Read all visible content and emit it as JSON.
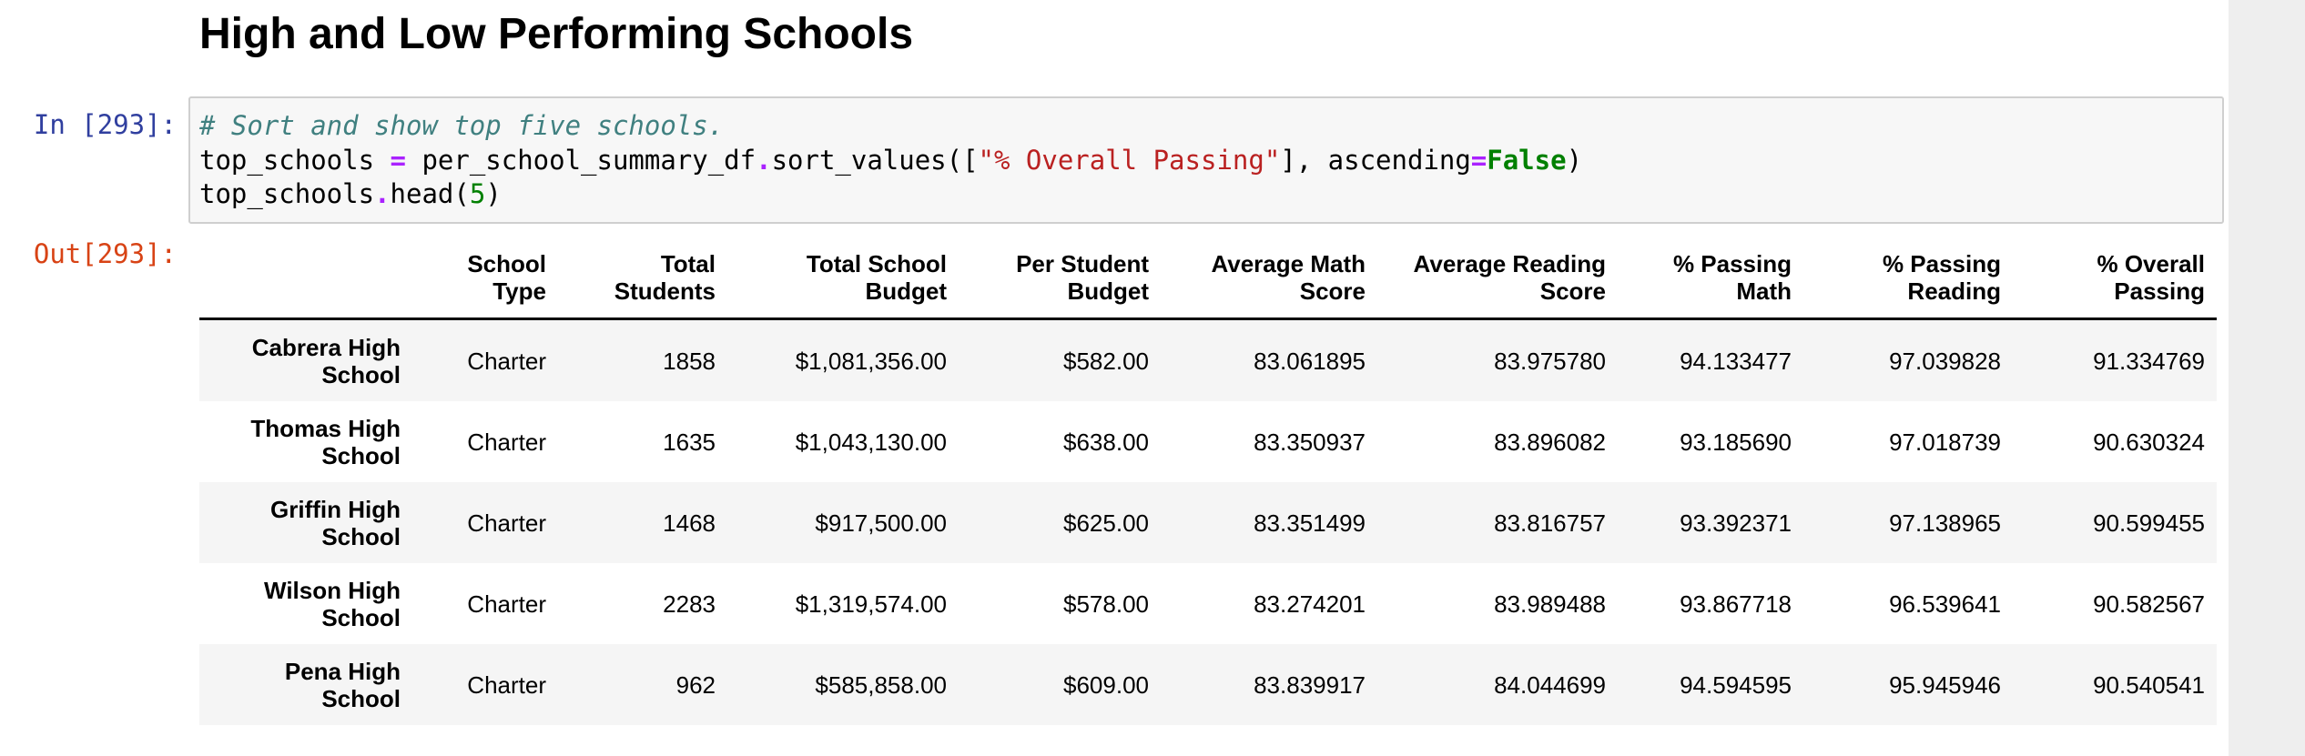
{
  "heading": "High and Low Performing Schools",
  "input_cell": {
    "prompt": "In [293]:",
    "code_lines": [
      [
        {
          "cls": "c-comment",
          "text": "# Sort and show top five schools."
        }
      ],
      [
        {
          "cls": "",
          "text": "top_schools "
        },
        {
          "cls": "c-op",
          "text": "="
        },
        {
          "cls": "",
          "text": " per_school_summary_df"
        },
        {
          "cls": "c-op",
          "text": "."
        },
        {
          "cls": "",
          "text": "sort_values(["
        },
        {
          "cls": "c-str",
          "text": "\"% Overall Passing\""
        },
        {
          "cls": "",
          "text": "], ascending"
        },
        {
          "cls": "c-op",
          "text": "="
        },
        {
          "cls": "c-kw",
          "text": "False"
        },
        {
          "cls": "",
          "text": ")"
        }
      ],
      [
        {
          "cls": "",
          "text": "top_schools"
        },
        {
          "cls": "c-op",
          "text": "."
        },
        {
          "cls": "",
          "text": "head("
        },
        {
          "cls": "c-num",
          "text": "5"
        },
        {
          "cls": "",
          "text": ")"
        }
      ]
    ]
  },
  "output_cell": {
    "prompt": "Out[293]:",
    "table": {
      "columns": [
        "",
        "School Type",
        "Total Students",
        "Total School Budget",
        "Per Student Budget",
        "Average Math Score",
        "Average Reading Score",
        "% Passing Math",
        "% Passing Reading",
        "% Overall Passing"
      ],
      "rows": [
        {
          "index": "Cabrera High School",
          "values": [
            "Charter",
            "1858",
            "$1,081,356.00",
            "$582.00",
            "83.061895",
            "83.975780",
            "94.133477",
            "97.039828",
            "91.334769"
          ]
        },
        {
          "index": "Thomas High School",
          "values": [
            "Charter",
            "1635",
            "$1,043,130.00",
            "$638.00",
            "83.350937",
            "83.896082",
            "93.185690",
            "97.018739",
            "90.630324"
          ]
        },
        {
          "index": "Griffin High School",
          "values": [
            "Charter",
            "1468",
            "$917,500.00",
            "$625.00",
            "83.351499",
            "83.816757",
            "93.392371",
            "97.138965",
            "90.599455"
          ]
        },
        {
          "index": "Wilson High School",
          "values": [
            "Charter",
            "2283",
            "$1,319,574.00",
            "$578.00",
            "83.274201",
            "83.989488",
            "93.867718",
            "96.539641",
            "90.582567"
          ]
        },
        {
          "index": "Pena High School",
          "values": [
            "Charter",
            "962",
            "$585,858.00",
            "$609.00",
            "83.839917",
            "84.044699",
            "94.594595",
            "95.945946",
            "90.540541"
          ]
        }
      ]
    }
  }
}
